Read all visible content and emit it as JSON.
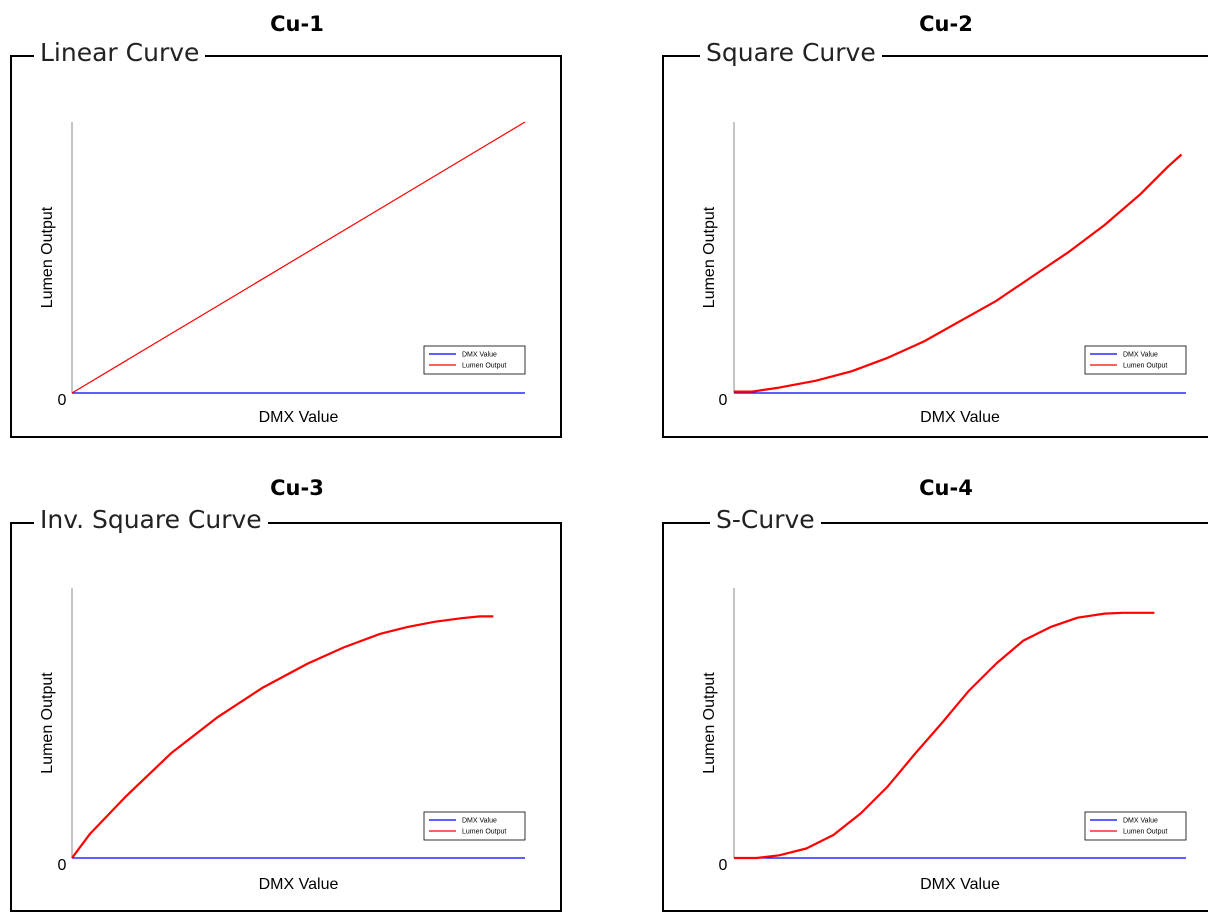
{
  "panels": [
    {
      "code": "Cu-1",
      "title": "Linear Curve",
      "chart_type": "line",
      "x_label": "DMX Value",
      "y_label": "Lumen Output",
      "zero_label": "0",
      "legend": [
        "DMX Value",
        "Lumen Output"
      ],
      "colors": {
        "dmx": "#0000ff",
        "lumen": "#ff0000"
      },
      "curve": [
        [
          0,
          0
        ],
        [
          1,
          1
        ]
      ]
    },
    {
      "code": "Cu-2",
      "title": "Square Curve",
      "chart_type": "line",
      "x_label": "DMX Value",
      "y_label": "Lumen Output",
      "zero_label": "0",
      "legend": [
        "DMX Value",
        "Lumen Output"
      ],
      "colors": {
        "dmx": "#0000ff",
        "lumen": "#ff0000"
      },
      "curve": [
        [
          0,
          0.005
        ],
        [
          0.04,
          0.005
        ],
        [
          0.1,
          0.02
        ],
        [
          0.18,
          0.045
        ],
        [
          0.26,
          0.08
        ],
        [
          0.34,
          0.13
        ],
        [
          0.42,
          0.19
        ],
        [
          0.5,
          0.265
        ],
        [
          0.58,
          0.34
        ],
        [
          0.66,
          0.43
        ],
        [
          0.74,
          0.52
        ],
        [
          0.82,
          0.62
        ],
        [
          0.9,
          0.735
        ],
        [
          0.96,
          0.835
        ],
        [
          0.99,
          0.88
        ]
      ]
    },
    {
      "code": "Cu-3",
      "title": "Inv. Square Curve",
      "chart_type": "line",
      "x_label": "DMX Value",
      "y_label": "Lumen Output",
      "zero_label": "0",
      "legend": [
        "DMX Value",
        "Lumen Output"
      ],
      "colors": {
        "dmx": "#0000ff",
        "lumen": "#ff0000"
      },
      "curve": [
        [
          0,
          0
        ],
        [
          0.04,
          0.09
        ],
        [
          0.12,
          0.23
        ],
        [
          0.22,
          0.39
        ],
        [
          0.32,
          0.52
        ],
        [
          0.42,
          0.63
        ],
        [
          0.52,
          0.72
        ],
        [
          0.6,
          0.78
        ],
        [
          0.68,
          0.83
        ],
        [
          0.74,
          0.855
        ],
        [
          0.8,
          0.875
        ],
        [
          0.86,
          0.888
        ],
        [
          0.9,
          0.895
        ],
        [
          0.93,
          0.895
        ]
      ]
    },
    {
      "code": "Cu-4",
      "title": "S-Curve",
      "chart_type": "line",
      "x_label": "DMX Value",
      "y_label": "Lumen Output",
      "zero_label": "0",
      "legend": [
        "DMX Value",
        "Lumen Output"
      ],
      "colors": {
        "dmx": "#0000ff",
        "lumen": "#ff0000"
      },
      "curve": [
        [
          0,
          0
        ],
        [
          0.05,
          0
        ],
        [
          0.1,
          0.01
        ],
        [
          0.16,
          0.035
        ],
        [
          0.22,
          0.085
        ],
        [
          0.28,
          0.165
        ],
        [
          0.34,
          0.265
        ],
        [
          0.4,
          0.385
        ],
        [
          0.46,
          0.5
        ],
        [
          0.52,
          0.62
        ],
        [
          0.58,
          0.72
        ],
        [
          0.64,
          0.805
        ],
        [
          0.7,
          0.855
        ],
        [
          0.76,
          0.89
        ],
        [
          0.82,
          0.905
        ],
        [
          0.86,
          0.908
        ],
        [
          0.93,
          0.908
        ]
      ]
    }
  ]
}
